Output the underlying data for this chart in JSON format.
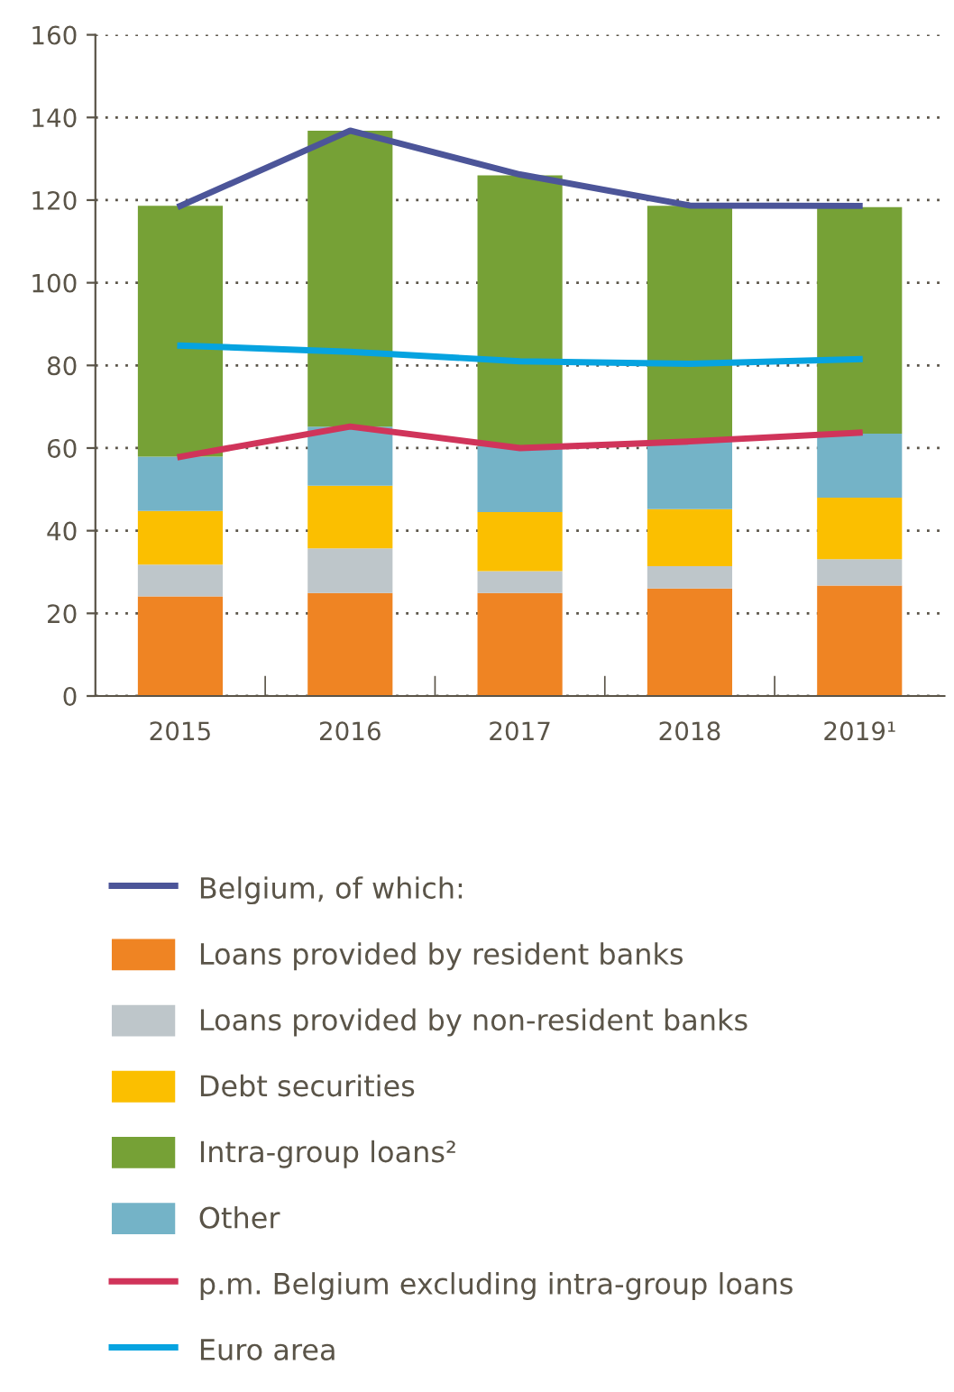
{
  "chart_data": {
    "type": "bar",
    "stacked": true,
    "categories": [
      "2015",
      "2016",
      "2017",
      "2018",
      "2019¹"
    ],
    "ylim": [
      0,
      160
    ],
    "yticks": [
      0,
      20,
      40,
      60,
      80,
      100,
      120,
      140,
      160
    ],
    "grid": "y",
    "legend": "bottom",
    "series": [
      {
        "name": "Belgium, of which:",
        "type": "line",
        "color": "#4c5599",
        "values": [
          118.6,
          136.8,
          126.2,
          118.7,
          118.6
        ]
      },
      {
        "name": "Loans provided by resident banks",
        "color": "#ef8423",
        "values": [
          24.1,
          24.9,
          24.9,
          26.0,
          26.7
        ]
      },
      {
        "name": "Loans provided by non-resident banks",
        "color": "#bec6ca",
        "values": [
          7.7,
          10.8,
          5.3,
          5.4,
          6.4
        ]
      },
      {
        "name": "Debt securities",
        "color": "#fbbf00",
        "values": [
          13.0,
          15.2,
          14.3,
          13.8,
          14.9
        ]
      },
      {
        "name": "Other",
        "color": "#74b3c7",
        "values": [
          13.1,
          14.3,
          16.0,
          16.4,
          15.5
        ]
      },
      {
        "name": "Intra-group loans²",
        "color": "#76a136",
        "values": [
          60.7,
          71.6,
          65.5,
          57.0,
          54.8
        ]
      },
      {
        "name": "p.m. Belgium excluding intra-group loans",
        "type": "line",
        "color": "#d0345a",
        "values": [
          57.9,
          65.2,
          60.0,
          61.6,
          63.7
        ]
      },
      {
        "name": "Euro area",
        "type": "line",
        "color": "#06a3e0",
        "values": [
          84.8,
          83.3,
          81.0,
          80.4,
          81.5
        ]
      }
    ]
  }
}
